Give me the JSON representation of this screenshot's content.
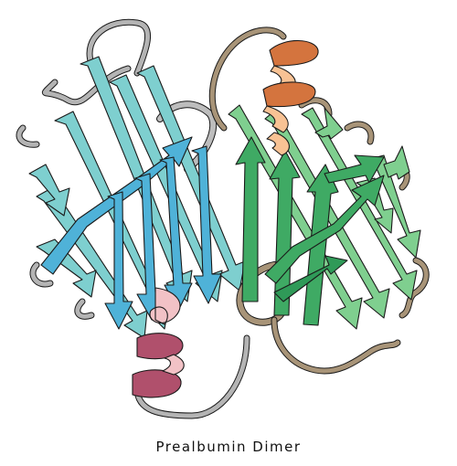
{
  "caption": "Prealbumin Dimer",
  "colors": {
    "background": "#ffffff",
    "monomer_a_sheet": "#7ecfcf",
    "monomer_a_sheet_front": "#4fb2d8",
    "monomer_a_loop": "#a8a8a8",
    "monomer_a_helix": "#b0506c",
    "monomer_a_helix_light": "#f2c2c6",
    "monomer_b_sheet": "#7fcf8f",
    "monomer_b_sheet_front": "#3faa64",
    "monomer_b_loop": "#9c8a70",
    "monomer_b_helix": "#d4743e",
    "monomer_b_helix_light": "#f8c294",
    "outline": "#1a1a1a"
  }
}
